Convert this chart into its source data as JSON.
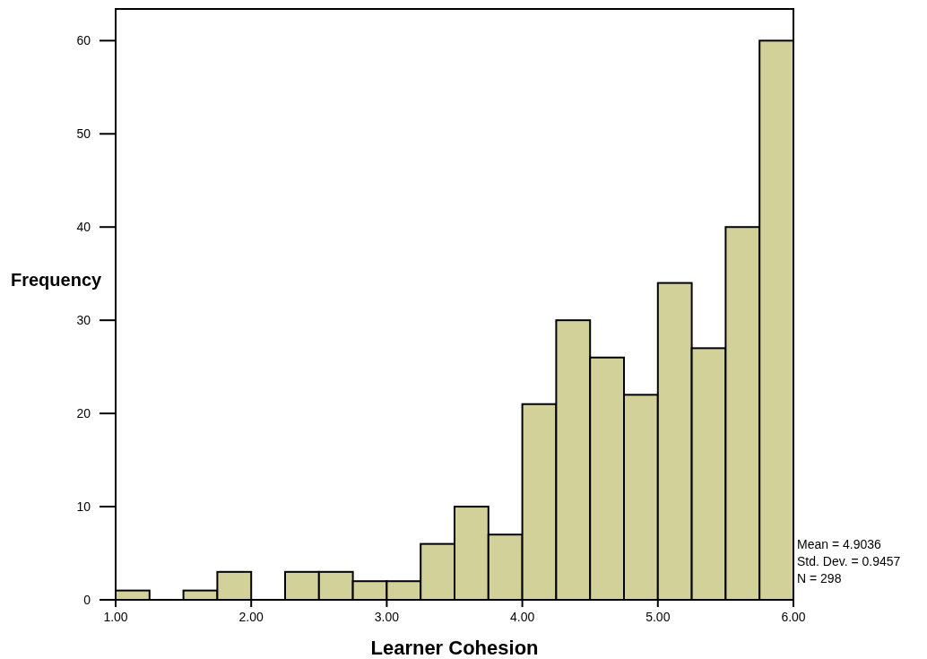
{
  "chart_data": {
    "type": "histogram",
    "xlabel": "Learner Cohesion",
    "ylabel": "Frequency",
    "bins": [
      1,
      1.25,
      1.5,
      1.75,
      2,
      2.25,
      2.5,
      2.75,
      3,
      3.25,
      3.5,
      3.75,
      4,
      4.25,
      4.5,
      4.75,
      5,
      5.25,
      5.5,
      5.75,
      6
    ],
    "values": [
      1,
      0,
      1,
      3,
      0,
      3,
      3,
      2,
      2,
      6,
      10,
      7,
      21,
      30,
      26,
      22,
      34,
      27,
      40,
      60
    ],
    "color": "#d3d19a",
    "xlim": [
      1,
      6
    ],
    "xticks": [
      {
        "value": 1,
        "label": "1.00"
      },
      {
        "value": 2,
        "label": "2.00"
      },
      {
        "value": 3,
        "label": "3.00"
      },
      {
        "value": 4,
        "label": "4.00"
      },
      {
        "value": 5,
        "label": "5.00"
      },
      {
        "value": 6,
        "label": "6.00"
      }
    ],
    "ylim": [
      0,
      63.4
    ],
    "yticks": [
      0,
      10,
      20,
      30,
      40,
      50,
      60
    ],
    "grid": false,
    "annotations": [
      "Mean = 4.9036",
      "Std. Dev. = 0.9457",
      "N = 298"
    ]
  }
}
